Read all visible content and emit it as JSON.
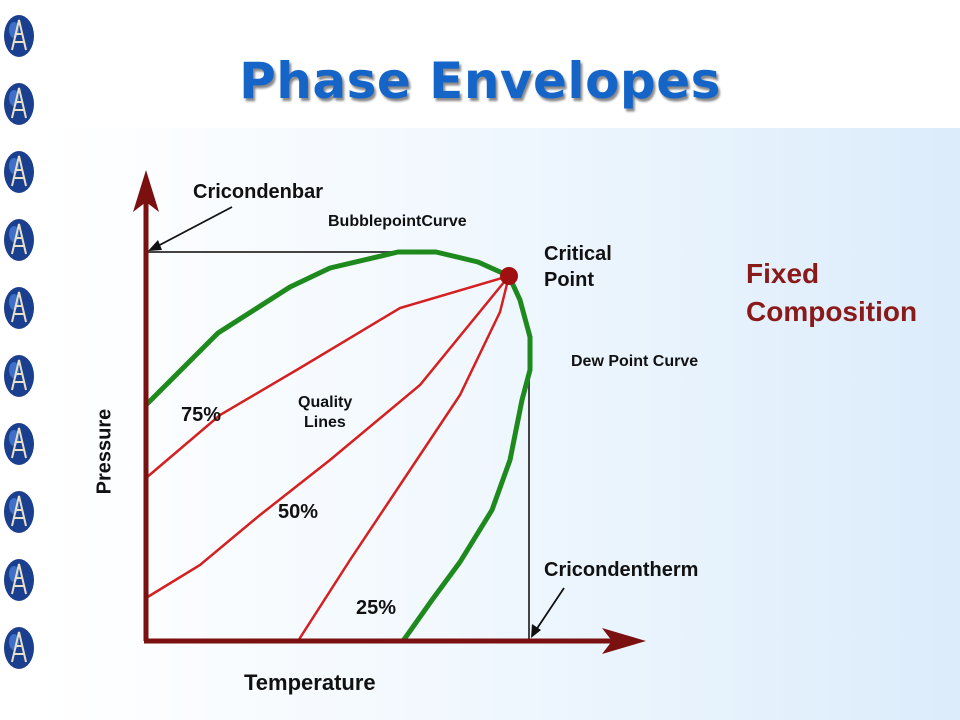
{
  "slide": {
    "title": "Phase Envelopes",
    "fixed_composition": [
      "Fixed",
      "Composition"
    ]
  },
  "diagram": {
    "x_axis_label": "Temperature",
    "y_axis_label": "Pressure",
    "labels": {
      "cricondenbar": "Cricondenbar",
      "bubblepoint_curve": "BubblepointCurve",
      "critical_point": [
        "Critical",
        "Point"
      ],
      "dew_point_curve": "Dew Point Curve",
      "quality_lines": [
        "Quality",
        "Lines"
      ],
      "quality_75": "75%",
      "quality_50": "50%",
      "quality_25": "25%",
      "cricondentherm": "Cricondentherm"
    }
  },
  "colors": {
    "title": "#1565c8",
    "axis": "#7a1010",
    "envelope": "#1e8a1e",
    "quality_lines": "#d42020",
    "critical_point": "#a01010",
    "fixed_composition": "#8a1a1a"
  },
  "icons": [
    "oil-derrick-globe-icon"
  ]
}
